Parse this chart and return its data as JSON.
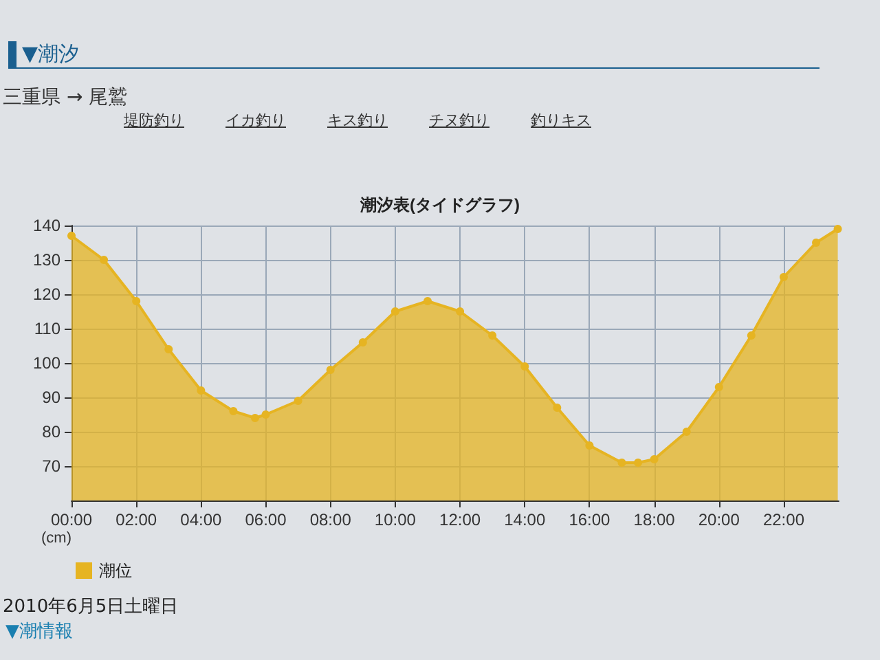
{
  "chart_data": {
    "type": "area",
    "title": "潮汐表(タイドグラフ)",
    "ylabel": "(cm)",
    "annotations": [
      "▼潮汐",
      "三重県 → 尾鷲",
      "堤防釣り",
      "イカ釣り",
      "キス釣り",
      "チヌ釣り",
      "釣りキス",
      "2010年6月5日土曜日",
      "▼潮情報"
    ],
    "x": [
      0,
      1,
      2,
      3,
      4,
      5,
      5.67,
      6,
      7,
      8,
      9,
      10,
      11,
      12,
      13,
      14,
      15,
      16,
      17,
      17.5,
      18,
      19,
      20,
      21,
      22,
      23,
      23.67
    ],
    "series": [
      {
        "name": "潮位",
        "color": "#e6b422",
        "values": [
          137,
          130,
          118,
          104,
          92,
          86,
          84,
          85,
          89,
          98,
          106,
          115,
          118,
          115,
          108,
          99,
          87,
          76,
          71,
          71,
          72,
          80,
          93,
          108,
          125,
          135,
          139
        ]
      }
    ],
    "xlim": [
      0,
      23.7
    ],
    "ylim": [
      60,
      140
    ],
    "xticks": [
      {
        "value": 0,
        "label": "00:00"
      },
      {
        "value": 2,
        "label": "02:00"
      },
      {
        "value": 4,
        "label": "04:00"
      },
      {
        "value": 6,
        "label": "06:00"
      },
      {
        "value": 8,
        "label": "08:00"
      },
      {
        "value": 10,
        "label": "10:00"
      },
      {
        "value": 12,
        "label": "12:00"
      },
      {
        "value": 14,
        "label": "14:00"
      },
      {
        "value": 16,
        "label": "16:00"
      },
      {
        "value": 18,
        "label": "18:00"
      },
      {
        "value": 20,
        "label": "20:00"
      },
      {
        "value": 22,
        "label": "22:00"
      }
    ],
    "yticks": [
      70,
      80,
      90,
      100,
      110,
      120,
      130,
      140
    ],
    "grid": true,
    "legend": "bottom left",
    "marker": "circle"
  }
}
